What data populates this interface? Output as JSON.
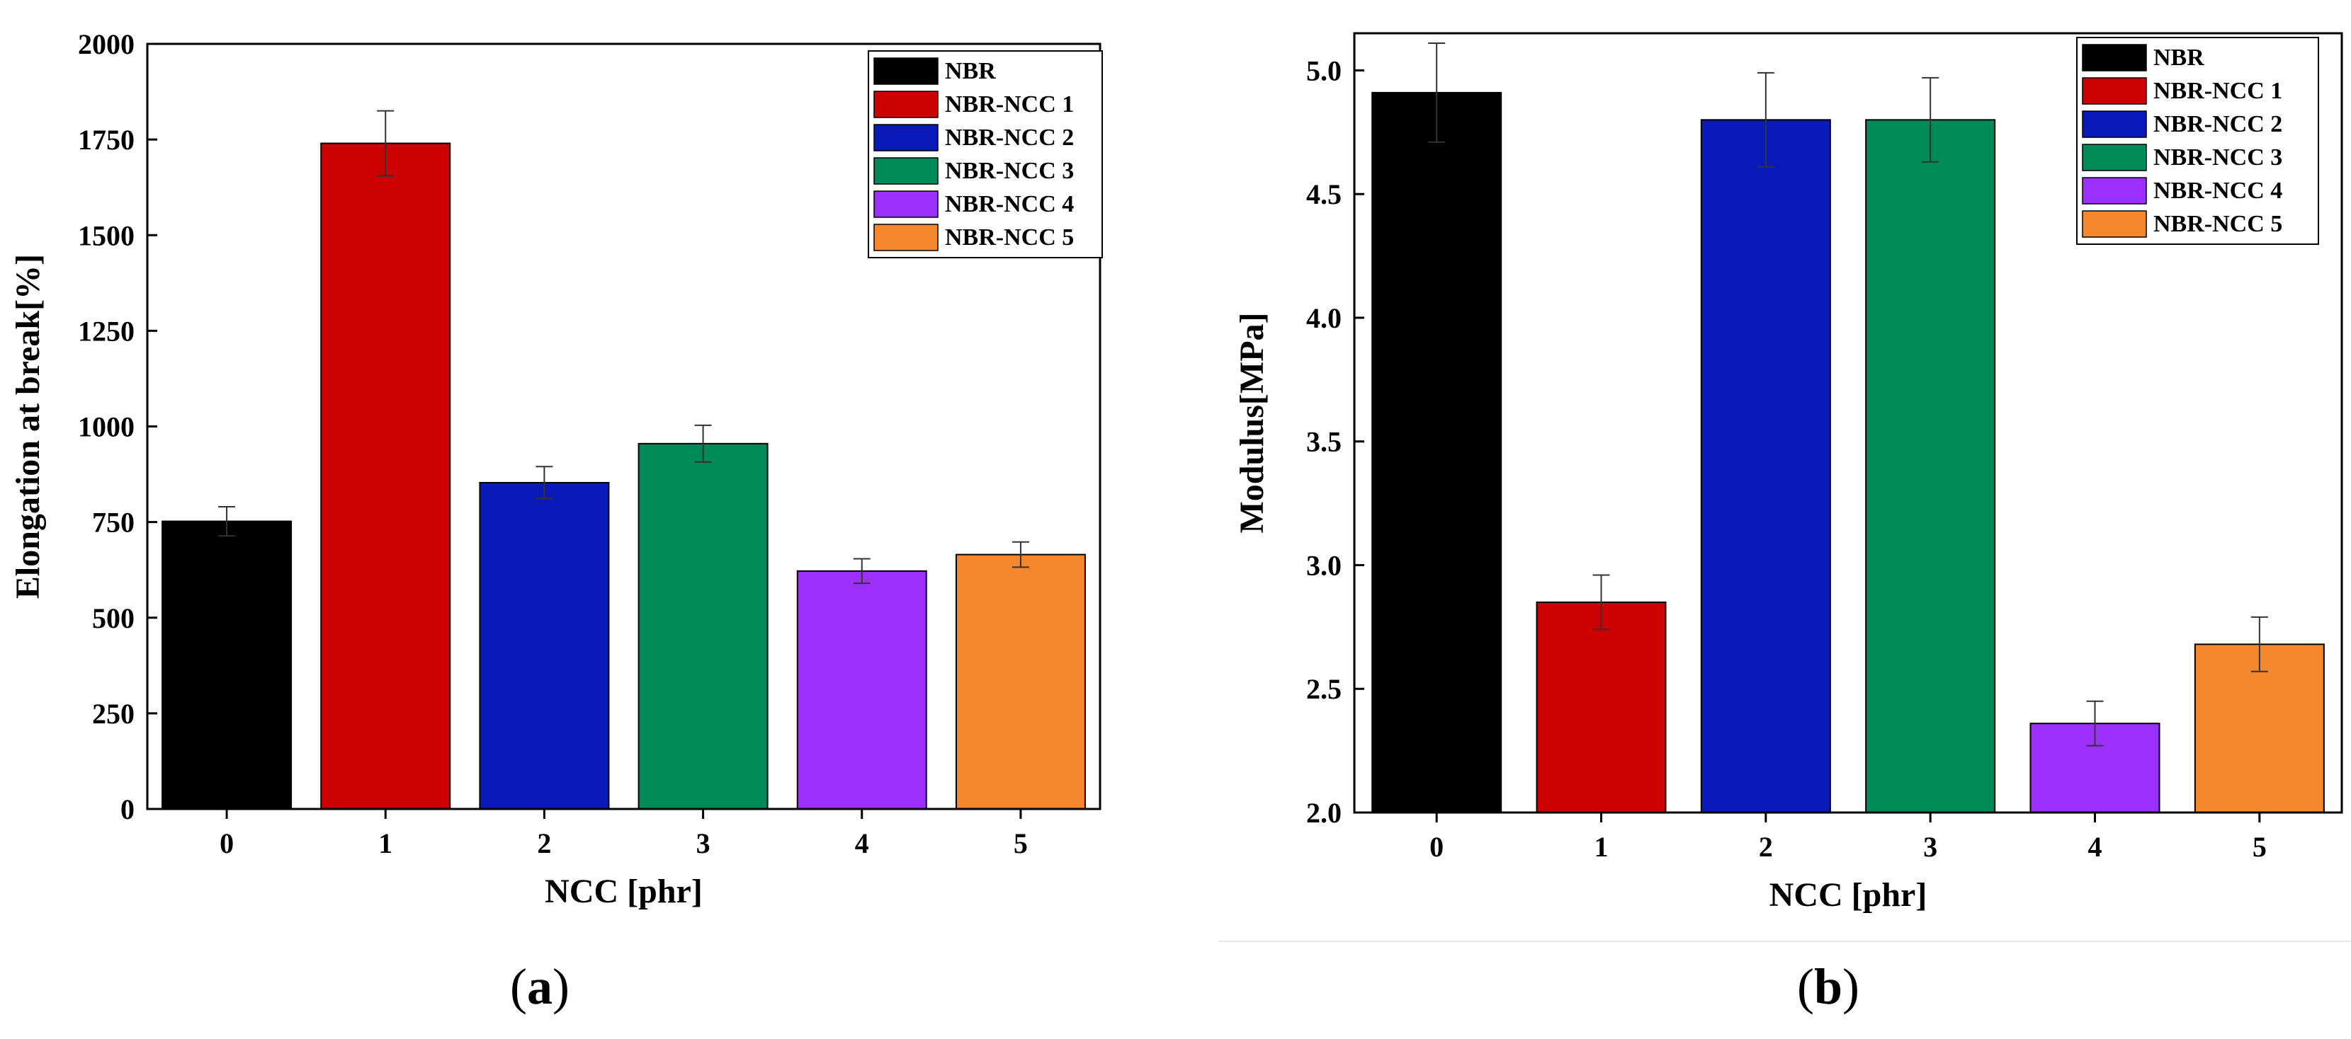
{
  "colors": {
    "black": "#000000",
    "red": "#cc0000",
    "blue": "#0a1ab8",
    "green": "#008a5a",
    "purple": "#9b30ff",
    "orange": "#f5872e"
  },
  "chart_data": [
    {
      "type": "bar",
      "caption_letter": "a",
      "xlabel": "NCC [phr]",
      "ylabel": "Elongation at break[%]",
      "categories": [
        "0",
        "1",
        "2",
        "3",
        "4",
        "5"
      ],
      "values": [
        752,
        1740,
        853,
        955,
        622,
        665
      ],
      "errors": [
        38,
        85,
        42,
        48,
        32,
        33
      ],
      "ylim": [
        0,
        2000
      ],
      "yticks": [
        "0",
        "250",
        "500",
        "750",
        "1000",
        "1250",
        "1500",
        "1750",
        "2000"
      ],
      "series_names": [
        "NBR",
        "NBR-NCC 1",
        "NBR-NCC 2",
        "NBR-NCC 3",
        "NBR-NCC 4",
        "NBR-NCC 5"
      ],
      "legend_position": "top-right",
      "grid": false
    },
    {
      "type": "bar",
      "caption_letter": "b",
      "xlabel": "NCC [phr]",
      "ylabel": "Modulus[MPa]",
      "categories": [
        "0",
        "1",
        "2",
        "3",
        "4",
        "5"
      ],
      "values": [
        4.91,
        2.85,
        4.8,
        4.8,
        2.36,
        2.68
      ],
      "errors": [
        0.2,
        0.11,
        0.19,
        0.17,
        0.09,
        0.11
      ],
      "ylim": [
        2.0,
        5.15
      ],
      "yticks": [
        "2.0",
        "2.5",
        "3.0",
        "3.5",
        "4.0",
        "4.5",
        "5.0"
      ],
      "series_names": [
        "NBR",
        "NBR-NCC 1",
        "NBR-NCC 2",
        "NBR-NCC 3",
        "NBR-NCC 4",
        "NBR-NCC 5"
      ],
      "legend_position": "top-right",
      "grid": false
    }
  ]
}
